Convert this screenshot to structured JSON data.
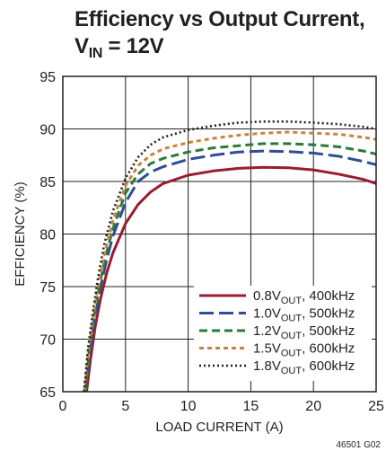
{
  "title_line1": "Efficiency vs Output Current,",
  "title_line2": {
    "pre": "V",
    "sub": "IN",
    "post": " = 12V"
  },
  "figure_code": "46501 G02",
  "chart_data": {
    "type": "line",
    "xlabel": "LOAD CURRENT (A)",
    "ylabel": "EFFICIENCY (%)",
    "xlim": [
      0,
      25
    ],
    "ylim": [
      65,
      95
    ],
    "xticks": [
      "0",
      "5",
      "10",
      "15",
      "20",
      "25"
    ],
    "yticks": [
      "65",
      "70",
      "75",
      "80",
      "85",
      "90",
      "95"
    ],
    "grid": true,
    "legend": "bottom-right",
    "series": [
      {
        "name": "0.8V",
        "name_sub": "OUT",
        "name_post": ", 400kHz",
        "color": "#9b1b30",
        "dash": "solid",
        "x": [
          1.9,
          2.2,
          2.6,
          3.0,
          3.5,
          4.0,
          5.0,
          6.0,
          7.0,
          8.0,
          10.0,
          12.0,
          14.0,
          16.0,
          18.0,
          20.0,
          22.0,
          24.0,
          25.0
        ],
        "y": [
          65.0,
          68.0,
          71.3,
          73.8,
          76.3,
          78.2,
          81.0,
          82.8,
          84.0,
          84.8,
          85.6,
          86.0,
          86.25,
          86.35,
          86.3,
          86.1,
          85.7,
          85.2,
          84.8
        ]
      },
      {
        "name": "1.0V",
        "name_sub": "OUT",
        "name_post": ", 500kHz",
        "color": "#2e4d9a",
        "dash": "long",
        "x": [
          1.8,
          2.1,
          2.5,
          3.0,
          3.5,
          4.0,
          5.0,
          6.0,
          7.0,
          8.0,
          10.0,
          12.0,
          14.0,
          16.0,
          18.0,
          20.0,
          22.0,
          24.0,
          25.0
        ],
        "y": [
          65.0,
          68.2,
          71.6,
          74.9,
          77.6,
          79.8,
          83.0,
          85.0,
          85.9,
          86.4,
          87.1,
          87.5,
          87.8,
          87.9,
          87.85,
          87.7,
          87.4,
          86.9,
          86.6
        ]
      },
      {
        "name": "1.2V",
        "name_sub": "OUT",
        "name_post": ", 500kHz",
        "color": "#2a7a3b",
        "dash": "medium",
        "x": [
          1.8,
          2.1,
          2.5,
          3.0,
          3.5,
          4.0,
          5.0,
          6.0,
          7.0,
          8.0,
          10.0,
          12.0,
          14.0,
          16.0,
          18.0,
          20.0,
          22.0,
          24.0,
          25.0
        ],
        "y": [
          65.0,
          68.8,
          72.2,
          75.6,
          78.3,
          80.5,
          83.9,
          85.7,
          86.7,
          87.2,
          87.8,
          88.2,
          88.4,
          88.6,
          88.6,
          88.5,
          88.3,
          87.9,
          87.6
        ]
      },
      {
        "name": "1.5V",
        "name_sub": "OUT",
        "name_post": ", 600kHz",
        "color": "#c8843c",
        "dash": "short",
        "x": [
          1.7,
          2.0,
          2.4,
          2.8,
          3.3,
          4.0,
          5.0,
          6.0,
          7.0,
          8.0,
          10.0,
          12.0,
          14.0,
          16.0,
          18.0,
          20.0,
          22.0,
          24.0,
          25.0
        ],
        "y": [
          65.0,
          68.5,
          72.0,
          75.0,
          78.0,
          81.3,
          84.6,
          86.5,
          87.5,
          88.1,
          88.7,
          89.1,
          89.4,
          89.6,
          89.7,
          89.6,
          89.5,
          89.2,
          89.0
        ]
      },
      {
        "name": "1.8V",
        "name_sub": "OUT",
        "name_post": ", 600kHz",
        "color": "#231f20",
        "dash": "dotted",
        "x": [
          1.7,
          2.0,
          2.4,
          2.8,
          3.3,
          4.0,
          5.0,
          6.0,
          7.0,
          8.0,
          10.0,
          12.0,
          14.0,
          16.0,
          18.0,
          20.0,
          22.0,
          24.0,
          25.0
        ],
        "y": [
          65.0,
          69.0,
          72.6,
          75.8,
          79.0,
          82.2,
          85.3,
          87.3,
          88.5,
          89.2,
          89.9,
          90.3,
          90.6,
          90.7,
          90.7,
          90.6,
          90.45,
          90.2,
          90.0
        ]
      }
    ]
  }
}
